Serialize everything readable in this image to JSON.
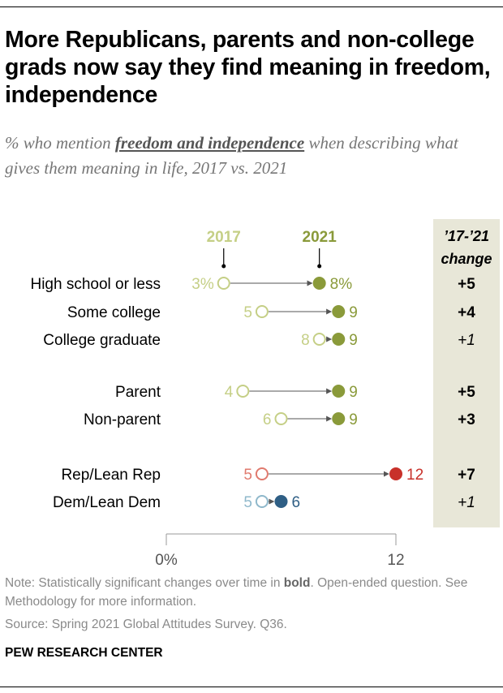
{
  "title": "More Republicans, parents and non-college grads now say they find meaning in freedom, independence",
  "subtitle": {
    "before": "% who mention ",
    "emphasis": "freedom and independence",
    "after": " when describing what gives them meaning in life, 2017 vs. 2021"
  },
  "note": {
    "before": "Note: Statistically significant changes over time in ",
    "bold": "bold",
    "after": ". Open-ended question. See Methodology for more information."
  },
  "source": "Source: Spring 2021 Global Attitudes Survey. Q36.",
  "org": "PEW RESEARCH CENTER",
  "colors": {
    "default_2017": "#c5cf86",
    "default_2021": "#8a9a3a",
    "rep_2017": "#e07a6e",
    "rep_2021": "#c8312a",
    "dem_2017": "#8fb8cb",
    "dem_2021": "#2f5f85",
    "change_panel": "#e8e7d8"
  },
  "chart_data": {
    "type": "dot-plot",
    "series_labels": [
      "2017",
      "2021"
    ],
    "change_header": "’17-’21 change",
    "change_header_line1": "’17-’21",
    "change_header_line2": "change",
    "x_range": [
      0,
      12
    ],
    "x_ticks": [
      {
        "value": 0,
        "label": "0%"
      },
      {
        "value": 12,
        "label": "12"
      }
    ],
    "groups": [
      {
        "rows": [
          {
            "label": "High school or less",
            "v2017": 3,
            "v2021": 8,
            "label2017": "3%",
            "label2021": "8%",
            "change": "+5",
            "significant": true,
            "palette": "default"
          },
          {
            "label": "Some college",
            "v2017": 5,
            "v2021": 9,
            "label2017": "5",
            "label2021": "9",
            "change": "+4",
            "significant": true,
            "palette": "default"
          },
          {
            "label": "College graduate",
            "v2017": 8,
            "v2021": 9,
            "label2017": "8",
            "label2021": "9",
            "change": "+1",
            "significant": false,
            "palette": "default"
          }
        ]
      },
      {
        "rows": [
          {
            "label": "Parent",
            "v2017": 4,
            "v2021": 9,
            "label2017": "4",
            "label2021": "9",
            "change": "+5",
            "significant": true,
            "palette": "default"
          },
          {
            "label": "Non-parent",
            "v2017": 6,
            "v2021": 9,
            "label2017": "6",
            "label2021": "9",
            "change": "+3",
            "significant": true,
            "palette": "default"
          }
        ]
      },
      {
        "rows": [
          {
            "label": "Rep/Lean Rep",
            "v2017": 5,
            "v2021": 12,
            "label2017": "5",
            "label2021": "12",
            "change": "+7",
            "significant": true,
            "palette": "rep"
          },
          {
            "label": "Dem/Lean Dem",
            "v2017": 5,
            "v2021": 6,
            "label2017": "5",
            "label2021": "6",
            "change": "+1",
            "significant": false,
            "palette": "dem"
          }
        ]
      }
    ]
  }
}
